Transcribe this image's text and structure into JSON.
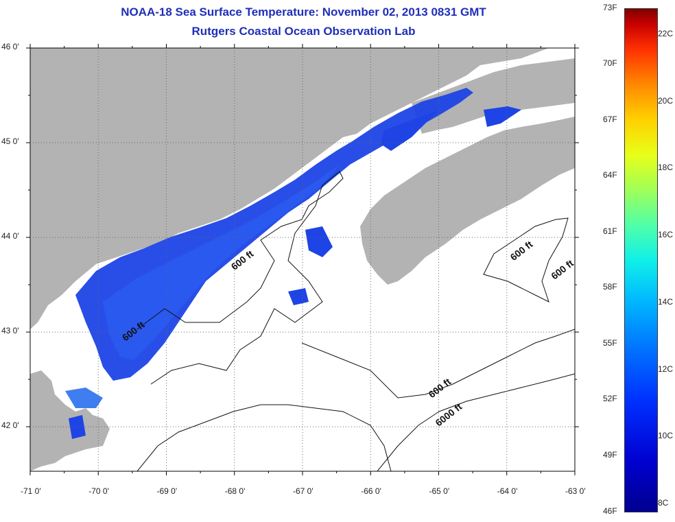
{
  "title_line1": "NOAA-18 Sea Surface Temperature:  November 02, 2013 0831 GMT",
  "title_line2": "Rutgers Coastal Ocean Observation Lab",
  "lat_ticks": [
    {
      "value": 46,
      "label": "46 0'"
    },
    {
      "value": 45,
      "label": "45 0'"
    },
    {
      "value": 44,
      "label": "44 0'"
    },
    {
      "value": 43,
      "label": "43 0'"
    },
    {
      "value": 42,
      "label": "42 0'"
    }
  ],
  "lon_ticks": [
    {
      "value": -71,
      "label": "-71 0'"
    },
    {
      "value": -70,
      "label": "-70 0'"
    },
    {
      "value": -69,
      "label": "-69 0'"
    },
    {
      "value": -68,
      "label": "-68 0'"
    },
    {
      "value": -67,
      "label": "-67 0'"
    },
    {
      "value": -66,
      "label": "-66 0'"
    },
    {
      "value": -65,
      "label": "-65 0'"
    },
    {
      "value": -64,
      "label": "-64 0'"
    },
    {
      "value": -63,
      "label": "-63 0'"
    }
  ],
  "contour_labels": [
    {
      "text": "600 ft",
      "lon": -68.0,
      "lat": 43.65
    },
    {
      "text": "600 ft",
      "lon": -69.6,
      "lat": 42.9
    },
    {
      "text": "600 ft",
      "lon": -63.9,
      "lat": 43.75
    },
    {
      "text": "600 ft",
      "lon": -63.3,
      "lat": 43.55
    },
    {
      "text": "600 ft",
      "lon": -65.1,
      "lat": 42.3
    },
    {
      "text": "6000 ft",
      "lon": -65.0,
      "lat": 42.0
    }
  ],
  "colorbar": {
    "fahrenheit": [
      {
        "value": 73,
        "label": "73F"
      },
      {
        "value": 70,
        "label": "70F"
      },
      {
        "value": 67,
        "label": "67F"
      },
      {
        "value": 64,
        "label": "64F"
      },
      {
        "value": 61,
        "label": "61F"
      },
      {
        "value": 58,
        "label": "58F"
      },
      {
        "value": 55,
        "label": "55F"
      },
      {
        "value": 52,
        "label": "52F"
      },
      {
        "value": 49,
        "label": "49F"
      },
      {
        "value": 46,
        "label": "46F"
      }
    ],
    "celsius": [
      {
        "value": 22,
        "label": "22C"
      },
      {
        "value": 20,
        "label": "20C"
      },
      {
        "value": 18,
        "label": "18C"
      },
      {
        "value": 16,
        "label": "16C"
      },
      {
        "value": 14,
        "label": "14C"
      },
      {
        "value": 12,
        "label": "12C"
      },
      {
        "value": 10,
        "label": "10C"
      },
      {
        "value": 8,
        "label": "8C"
      }
    ]
  },
  "colors": {
    "land": "#b3b3b3",
    "water_cold": "#1e44e6",
    "water_mid": "#2a5cf2",
    "water_light": "#3f7ef0",
    "title": "#1f2fb8"
  }
}
